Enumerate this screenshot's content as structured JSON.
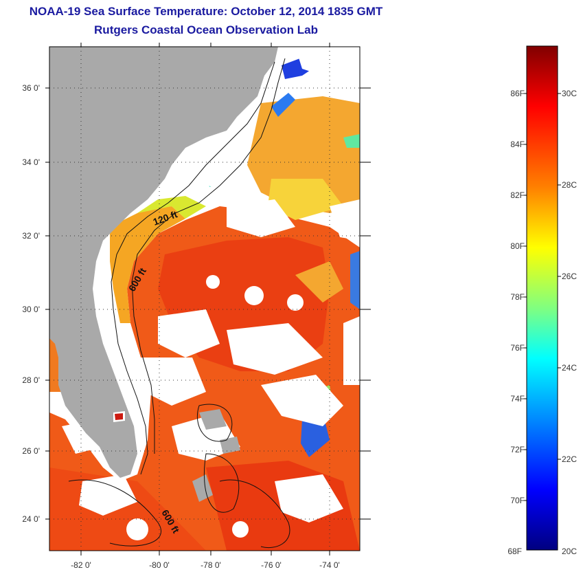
{
  "title": "NOAA-19 Sea Surface Temperature:  October 12, 2014 1835 GMT",
  "subtitle": "Rutgers Coastal Ocean Observation Lab",
  "map": {
    "lon_labels": [
      "-82 0'",
      "-80 0'",
      "-78 0'",
      "-76 0'",
      "-74 0'"
    ],
    "lat_labels": [
      "36 0'",
      "34 0'",
      "32 0'",
      "30 0'",
      "28 0'",
      "26 0'",
      "24 0'"
    ],
    "contour_labels": [
      "120 ft",
      "600 ft",
      "600 ft"
    ],
    "land_color": "#a9a9a9",
    "cloud_color": "#ffffff"
  },
  "colorbar": {
    "f_labels": [
      "86F",
      "84F",
      "82F",
      "80F",
      "78F",
      "76F",
      "74F",
      "72F",
      "70F",
      "68F"
    ],
    "c_labels": [
      "30C",
      "28C",
      "26C",
      "24C",
      "22C",
      "20C"
    ],
    "colors": [
      "#800000",
      "#ff0000",
      "#ff8000",
      "#ffff00",
      "#80ff80",
      "#00ffff",
      "#0080ff",
      "#0000ff",
      "#000080"
    ]
  }
}
